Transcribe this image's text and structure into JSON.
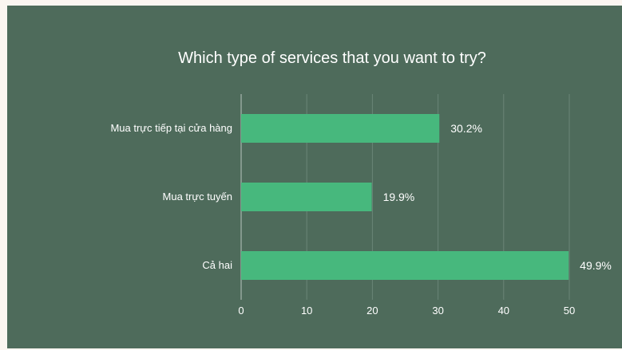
{
  "chart_data": {
    "type": "bar",
    "orientation": "horizontal",
    "title": "Which type of services that you want to try?",
    "categories": [
      "Mua trực tiếp tại cửa hàng",
      "Mua trực tuyến",
      "Cả hai"
    ],
    "values": [
      30.2,
      19.9,
      49.9
    ],
    "data_labels": [
      "30.2%",
      "19.9%",
      "49.9%"
    ],
    "xlim": [
      0,
      50
    ],
    "x_ticks": [
      "0",
      "10",
      "20",
      "30",
      "40",
      "50"
    ],
    "grid": true,
    "colors": {
      "background": "#4e6b5b",
      "bar": "#47b87d",
      "text": "#ffffff"
    }
  }
}
